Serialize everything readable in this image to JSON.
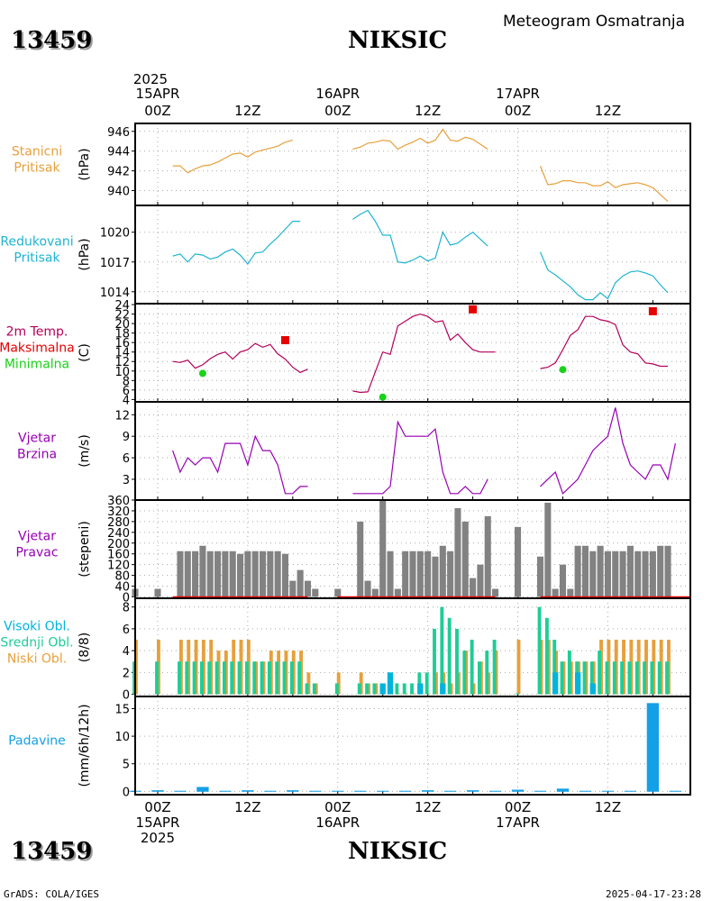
{
  "header": {
    "station_id": "13459",
    "station_name": "NIKSIC",
    "product_title": "Meteogram Osmatranja"
  },
  "footer": {
    "station_id": "13459",
    "station_name": "NIKSIC",
    "credit": "GrADS: COLA/IGES",
    "timestamp": "2025-04-17-23:28"
  },
  "time_axis": {
    "year_label": "2025",
    "top_day_labels": [
      "15APR",
      "16APR",
      "17APR"
    ],
    "hour_labels": [
      "00Z",
      "12Z",
      "00Z",
      "12Z",
      "00Z",
      "12Z"
    ],
    "bottom_day_labels": [
      "15APR",
      "16APR",
      "17APR"
    ],
    "bottom_year_label": "2025",
    "start": "2025-04-14T21:00Z",
    "end": "2025-04-17T23:00Z"
  },
  "colors": {
    "pressure_station": "#e6a03c",
    "pressure_reduced": "#1eb4d2",
    "temperature": "#b4005a",
    "tmax_marker": "#e60000",
    "tmin_marker": "#19d219",
    "wind_speed": "#9600b4",
    "wind_dir_bar": "#828282",
    "cloud_high": "#00b4dc",
    "cloud_mid": "#1ecd96",
    "cloud_low": "#e6a03c",
    "precip": "#14a0e6",
    "grid": "#aaaaaa"
  },
  "chart_data": [
    {
      "type": "line",
      "panel_label_lines": [
        "Stanicni",
        "Pritisak"
      ],
      "label_color_key": "pressure_station",
      "ylabel": "(hPa)",
      "ylim": [
        938.5,
        946.8
      ],
      "yticks": [
        940,
        942,
        944,
        946
      ],
      "grid": true,
      "series": [
        {
          "color_key": "pressure_station",
          "segments": [
            {
              "start": "2025-04-15T02:00Z",
              "values": [
                942.5,
                942.5,
                941.8,
                942.2,
                942.5,
                942.6,
                942.9,
                943.3,
                943.7,
                943.8,
                943.4,
                943.9,
                944.1,
                944.3,
                944.5,
                944.9,
                945.1
              ]
            },
            {
              "start": "2025-04-16T02:00Z",
              "values": [
                944.2,
                944.4,
                944.8,
                944.9,
                945.1,
                945.0,
                944.2,
                944.6,
                944.9,
                945.3,
                944.8,
                945.1,
                946.2,
                945.1,
                945.0,
                945.4,
                945.2,
                944.7,
                944.2
              ]
            },
            {
              "start": "2025-04-17T03:00Z",
              "values": [
                942.5,
                940.6,
                940.7,
                941.0,
                941.0,
                940.8,
                940.8,
                940.5,
                940.5,
                940.9,
                940.3,
                940.6,
                940.7,
                940.8,
                940.6,
                940.3,
                939.6,
                938.9
              ]
            }
          ]
        }
      ]
    },
    {
      "type": "line",
      "panel_label_lines": [
        "Redukovani",
        "Pritisak"
      ],
      "label_color_key": "pressure_reduced",
      "ylabel": "(hPa)",
      "ylim": [
        1012.8,
        1022.7
      ],
      "yticks": [
        1014,
        1017,
        1020
      ],
      "grid": true,
      "series": [
        {
          "color_key": "pressure_reduced",
          "segments": [
            {
              "start": "2025-04-15T02:00Z",
              "values": [
                1017.6,
                1017.8,
                1017.0,
                1017.8,
                1017.7,
                1017.3,
                1017.5,
                1018.0,
                1018.3,
                1017.7,
                1016.8,
                1017.9,
                1018.0,
                1018.8,
                1019.5,
                1020.3,
                1021.1,
                1021.1
              ]
            },
            {
              "start": "2025-04-16T02:00Z",
              "values": [
                1021.3,
                1021.8,
                1022.2,
                1021.1,
                1019.7,
                1019.7,
                1017.0,
                1016.9,
                1017.2,
                1017.6,
                1017.1,
                1017.4,
                1020.0,
                1018.7,
                1018.9,
                1019.5,
                1020.0,
                1019.3,
                1018.6
              ]
            },
            {
              "start": "2025-04-17T03:00Z",
              "values": [
                1018.0,
                1016.2,
                1015.7,
                1015.1,
                1014.5,
                1013.7,
                1013.2,
                1013.2,
                1013.9,
                1013.3,
                1014.9,
                1015.6,
                1016.0,
                1016.1,
                1015.9,
                1015.6,
                1014.7,
                1013.9
              ]
            }
          ]
        }
      ]
    },
    {
      "type": "line",
      "panel_label_lines": [
        "2m Temp.",
        "Maksimalna",
        "Minimalna"
      ],
      "label_color_keys": [
        "temperature",
        "tmax_marker",
        "tmin_marker"
      ],
      "ylabel": "(C)",
      "ylim": [
        3.5,
        24.2
      ],
      "yticks": [
        4,
        6,
        8,
        10,
        12,
        14,
        16,
        18,
        20,
        22,
        24
      ],
      "grid": true,
      "series": [
        {
          "color_key": "temperature",
          "segments": [
            {
              "start": "2025-04-15T02:00Z",
              "values": [
                12.0,
                11.8,
                12.3,
                10.6,
                11.3,
                12.6,
                13.5,
                14.0,
                12.5,
                14.0,
                14.5,
                15.8,
                15.0,
                15.6,
                13.6,
                12.5,
                10.8,
                9.7,
                10.4
              ]
            },
            {
              "start": "2025-04-16T02:00Z",
              "values": [
                5.8,
                5.5,
                5.6,
                9.8,
                14.0,
                13.5,
                19.5,
                20.5,
                21.5,
                22.0,
                21.5,
                20.3,
                20.6,
                16.5,
                17.8,
                16.0,
                14.5,
                14.0,
                14.0,
                14.0
              ]
            },
            {
              "start": "2025-04-17T03:00Z",
              "values": [
                10.5,
                10.8,
                11.7,
                14.5,
                17.5,
                18.7,
                21.5,
                21.5,
                20.8,
                20.5,
                19.8,
                15.5,
                14.0,
                13.6,
                11.7,
                11.5,
                11.0,
                11.0
              ]
            }
          ]
        },
        {
          "name": "Maksimalna",
          "color_key": "tmax_marker",
          "marker": "square",
          "points": [
            {
              "x": "2025-04-15T17:00Z",
              "y": 16.5
            },
            {
              "x": "2025-04-16T18:00Z",
              "y": 23.0
            },
            {
              "x": "2025-04-17T18:00Z",
              "y": 22.6
            }
          ]
        },
        {
          "name": "Minimalna",
          "color_key": "tmin_marker",
          "marker": "circle",
          "points": [
            {
              "x": "2025-04-15T06:00Z",
              "y": 9.5
            },
            {
              "x": "2025-04-16T06:00Z",
              "y": 4.5
            },
            {
              "x": "2025-04-17T06:00Z",
              "y": 10.3
            }
          ]
        }
      ]
    },
    {
      "type": "line",
      "panel_label_lines": [
        "Vjetar",
        "Brzina"
      ],
      "label_color_key": "wind_speed",
      "ylabel": "(m/s)",
      "ylim": [
        0.1,
        13.8
      ],
      "yticks": [
        3,
        6,
        9,
        12
      ],
      "grid": true,
      "series": [
        {
          "color_key": "wind_speed",
          "segments": [
            {
              "start": "2025-04-15T02:00Z",
              "values": [
                7,
                4,
                6,
                5,
                6,
                6,
                4,
                8,
                8,
                8,
                5,
                9,
                7,
                7,
                5,
                1,
                1,
                2,
                2
              ]
            },
            {
              "start": "2025-04-16T02:00Z",
              "values": [
                1,
                1,
                1,
                1,
                1,
                2,
                11,
                9,
                9,
                9,
                9,
                10,
                4,
                1,
                1,
                2,
                1,
                1,
                3
              ]
            },
            {
              "start": "2025-04-17T03:00Z",
              "values": [
                2,
                3,
                4,
                1,
                2,
                3,
                5,
                7,
                8,
                9,
                13,
                8,
                5,
                4,
                3,
                5,
                5,
                3,
                8
              ]
            }
          ]
        }
      ]
    },
    {
      "type": "bar",
      "panel_label_lines": [
        "Vjetar",
        "Pravac"
      ],
      "label_color_key": "wind_speed",
      "ylabel": "(stepeni)",
      "ylim": [
        -5,
        360
      ],
      "yticks": [
        0,
        40,
        80,
        120,
        160,
        200,
        240,
        280,
        320,
        360
      ],
      "grid": true,
      "bar_color_key": "wind_dir_bar",
      "baseline_color_key": "tmax_marker",
      "baseline_segments": [
        [
          "2025-04-15T02:00Z",
          "2025-04-15T20:00Z"
        ],
        [
          "2025-04-16T00:00Z",
          "2025-04-16T21:00Z"
        ],
        [
          "2025-04-17T03:00Z",
          "2025-04-17T23:00Z"
        ]
      ],
      "bars": [
        {
          "x": "2025-04-14T21:00Z",
          "y": 30
        },
        {
          "x": "2025-04-15T00:00Z",
          "y": 30
        },
        {
          "start": "2025-04-15T03:00Z",
          "values": [
            170,
            170,
            170,
            190,
            170,
            170,
            170,
            170,
            160,
            170,
            170,
            170,
            170,
            170,
            160,
            60,
            100,
            60,
            30
          ]
        },
        {
          "x": "2025-04-16T00:00Z",
          "y": 30
        },
        {
          "start": "2025-04-16T03:00Z",
          "values": [
            280,
            60,
            30,
            360,
            170,
            30,
            170,
            170,
            170,
            170,
            150,
            190,
            170,
            330,
            280,
            70,
            120,
            300,
            30
          ]
        },
        {
          "x": "2025-04-17T00:00Z",
          "y": 260
        },
        {
          "start": "2025-04-17T03:00Z",
          "values": [
            150,
            350,
            30,
            120,
            30,
            190,
            190,
            170,
            190,
            170,
            170,
            170,
            190,
            170,
            170,
            170,
            190,
            190
          ]
        }
      ]
    },
    {
      "type": "bar",
      "panel_label_lines": [
        "Visoki Obl.",
        "Srednji Obl.",
        "Niski Obl."
      ],
      "label_color_keys": [
        "cloud_high",
        "cloud_mid",
        "cloud_low"
      ],
      "ylabel": "(8/8)",
      "ylim": [
        -0.2,
        8.8
      ],
      "yticks": [
        0,
        2,
        4,
        6,
        8
      ],
      "grid": true,
      "series": [
        {
          "name": "Visoki Obl.",
          "color_key": "cloud_high",
          "bars": [
            {
              "x": "2025-04-16T06:00Z",
              "y": 1
            },
            {
              "x": "2025-04-16T07:00Z",
              "y": 2
            },
            {
              "x": "2025-04-16T11:00Z",
              "y": 1
            },
            {
              "x": "2025-04-16T14:00Z",
              "y": 1
            },
            {
              "x": "2025-04-17T05:00Z",
              "y": 2
            },
            {
              "x": "2025-04-17T08:00Z",
              "y": 2
            },
            {
              "x": "2025-04-17T10:00Z",
              "y": 1
            }
          ]
        },
        {
          "name": "Srednji Obl.",
          "color_key": "cloud_mid",
          "bars": [
            {
              "x": "2025-04-14T21:00Z",
              "y": 3
            },
            {
              "x": "2025-04-15T00:00Z",
              "y": 3
            },
            {
              "start": "2025-04-15T03:00Z",
              "values": [
                3,
                3,
                3,
                3,
                3,
                3,
                3,
                3,
                3,
                3,
                3,
                3,
                3,
                3,
                3,
                3,
                3,
                1,
                1
              ]
            },
            {
              "x": "2025-04-16T00:00Z",
              "y": 1
            },
            {
              "start": "2025-04-16T03:00Z",
              "values": [
                1,
                1,
                1,
                0,
                2,
                1,
                1,
                1,
                2,
                2,
                6,
                8,
                7,
                6,
                4,
                5,
                3,
                4,
                5
              ]
            },
            {
              "x": "2025-04-17T00:00Z",
              "y": 0
            },
            {
              "start": "2025-04-17T03:00Z",
              "values": [
                8,
                7,
                5,
                3,
                4,
                3,
                3,
                3,
                4,
                3,
                3,
                3,
                3,
                3,
                3,
                3,
                3,
                3
              ]
            }
          ]
        },
        {
          "name": "Niski Obl.",
          "color_key": "cloud_low",
          "bars": [
            {
              "x": "2025-04-14T21:00Z",
              "y": 5
            },
            {
              "x": "2025-04-15T00:00Z",
              "y": 5
            },
            {
              "start": "2025-04-15T03:00Z",
              "values": [
                5,
                5,
                5,
                5,
                5,
                4,
                4,
                5,
                5,
                5,
                3,
                3,
                4,
                4,
                4,
                4,
                4,
                2,
                1
              ]
            },
            {
              "x": "2025-04-16T00:00Z",
              "y": 2
            },
            {
              "start": "2025-04-16T03:00Z",
              "values": [
                2,
                1,
                1,
                0,
                1,
                0,
                0,
                0,
                0,
                0,
                2,
                2,
                1,
                2,
                4,
                1,
                3,
                2,
                4
              ]
            },
            {
              "x": "2025-04-17T00:00Z",
              "y": 5
            },
            {
              "start": "2025-04-17T03:00Z",
              "values": [
                5,
                5,
                4,
                3,
                3,
                3,
                3,
                3,
                5,
                5,
                5,
                5,
                5,
                5,
                5,
                5,
                5,
                5
              ]
            }
          ]
        }
      ]
    },
    {
      "type": "bar",
      "panel_label_lines": [
        "Padavine"
      ],
      "label_color_key": "precip",
      "ylabel": "(mm/6h/12h)",
      "ylim": [
        -0.6,
        17.2
      ],
      "yticks": [
        0,
        5,
        10,
        15
      ],
      "grid": true,
      "series": [
        {
          "name": "Padavine",
          "color_key": "precip",
          "trace": 0.1,
          "bars": [
            {
              "x": "2025-04-15T00:00Z",
              "y": 0.2
            },
            {
              "x": "2025-04-15T06:00Z",
              "y": 0.8
            },
            {
              "x": "2025-04-15T12:00Z",
              "y": 0.2
            },
            {
              "x": "2025-04-15T18:00Z",
              "y": 0.2
            },
            {
              "x": "2025-04-16T12:00Z",
              "y": 0.2
            },
            {
              "x": "2025-04-16T18:00Z",
              "y": 0.2
            },
            {
              "x": "2025-04-17T00:00Z",
              "y": 0.3
            },
            {
              "x": "2025-04-17T06:00Z",
              "y": 0.5
            },
            {
              "x": "2025-04-17T18:00Z",
              "y": 16.0
            }
          ]
        }
      ]
    }
  ]
}
